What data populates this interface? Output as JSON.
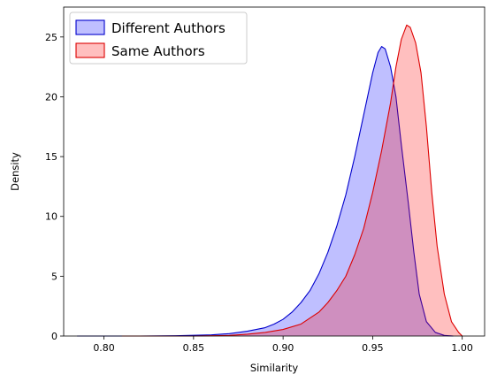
{
  "chart_data": {
    "type": "area",
    "title": "",
    "xlabel": "Similarity",
    "ylabel": "Density",
    "xlim": [
      0.7775,
      1.0125
    ],
    "ylim": [
      0,
      27.5
    ],
    "xticks": [
      {
        "value": 0.8,
        "label": "0.80"
      },
      {
        "value": 0.85,
        "label": "0.85"
      },
      {
        "value": 0.9,
        "label": "0.90"
      },
      {
        "value": 0.95,
        "label": "0.95"
      },
      {
        "value": 1.0,
        "label": "1.00"
      }
    ],
    "yticks": [
      {
        "value": 0,
        "label": "0"
      },
      {
        "value": 5,
        "label": "5"
      },
      {
        "value": 10,
        "label": "10"
      },
      {
        "value": 15,
        "label": "15"
      },
      {
        "value": 20,
        "label": "20"
      },
      {
        "value": 25,
        "label": "25"
      }
    ],
    "grid": false,
    "legend_position": "top-left",
    "series": [
      {
        "name": "Different Authors",
        "line_color": "#0000cc",
        "fill_color": "#0000ff",
        "fill_opacity": 0.25,
        "points": [
          [
            0.785,
            0.0
          ],
          [
            0.8,
            0.0
          ],
          [
            0.82,
            0.0
          ],
          [
            0.84,
            0.02
          ],
          [
            0.86,
            0.1
          ],
          [
            0.87,
            0.2
          ],
          [
            0.88,
            0.4
          ],
          [
            0.89,
            0.7
          ],
          [
            0.895,
            1.0
          ],
          [
            0.9,
            1.4
          ],
          [
            0.905,
            2.0
          ],
          [
            0.91,
            2.8
          ],
          [
            0.915,
            3.8
          ],
          [
            0.92,
            5.2
          ],
          [
            0.925,
            7.0
          ],
          [
            0.93,
            9.2
          ],
          [
            0.935,
            11.8
          ],
          [
            0.94,
            15.0
          ],
          [
            0.945,
            18.5
          ],
          [
            0.95,
            22.0
          ],
          [
            0.953,
            23.7
          ],
          [
            0.955,
            24.2
          ],
          [
            0.957,
            24.0
          ],
          [
            0.96,
            22.5
          ],
          [
            0.963,
            20.0
          ],
          [
            0.966,
            16.0
          ],
          [
            0.97,
            11.0
          ],
          [
            0.973,
            7.0
          ],
          [
            0.976,
            3.5
          ],
          [
            0.98,
            1.2
          ],
          [
            0.985,
            0.3
          ],
          [
            0.99,
            0.05
          ],
          [
            0.995,
            0.0
          ]
        ]
      },
      {
        "name": "Same Authors",
        "line_color": "#dd0000",
        "fill_color": "#ff0000",
        "fill_opacity": 0.25,
        "points": [
          [
            0.81,
            0.0
          ],
          [
            0.85,
            0.0
          ],
          [
            0.87,
            0.05
          ],
          [
            0.88,
            0.15
          ],
          [
            0.89,
            0.3
          ],
          [
            0.9,
            0.55
          ],
          [
            0.91,
            1.0
          ],
          [
            0.92,
            2.0
          ],
          [
            0.925,
            2.8
          ],
          [
            0.93,
            3.8
          ],
          [
            0.935,
            5.0
          ],
          [
            0.94,
            6.8
          ],
          [
            0.945,
            9.0
          ],
          [
            0.95,
            12.0
          ],
          [
            0.955,
            15.5
          ],
          [
            0.96,
            19.5
          ],
          [
            0.963,
            22.5
          ],
          [
            0.966,
            24.8
          ],
          [
            0.969,
            26.0
          ],
          [
            0.971,
            25.8
          ],
          [
            0.974,
            24.5
          ],
          [
            0.977,
            22.0
          ],
          [
            0.98,
            17.5
          ],
          [
            0.983,
            12.0
          ],
          [
            0.986,
            7.5
          ],
          [
            0.99,
            3.5
          ],
          [
            0.994,
            1.2
          ],
          [
            0.998,
            0.3
          ],
          [
            1.0,
            0.0
          ]
        ]
      }
    ]
  }
}
